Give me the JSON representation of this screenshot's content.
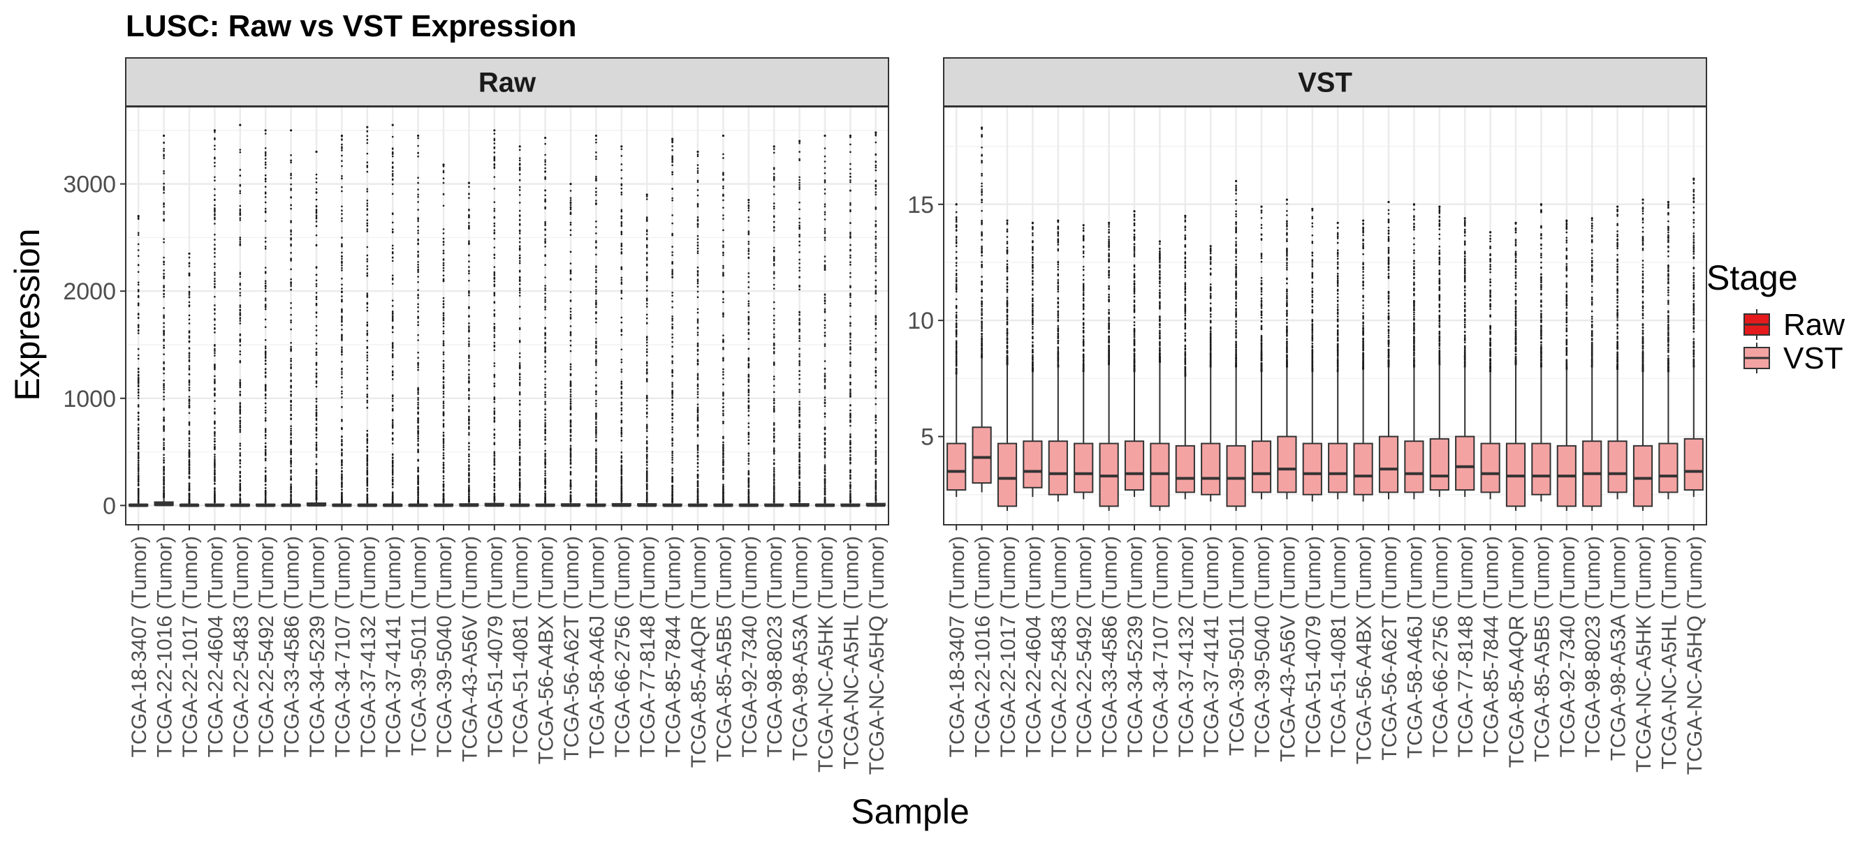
{
  "chart_data": {
    "type": "box",
    "title": "LUSC: Raw vs VST Expression",
    "xlabel": "Sample",
    "ylabel": "Expression",
    "legend": {
      "title": "Stage",
      "position": "right",
      "entries": [
        {
          "name": "Raw",
          "color": "#E41A1C"
        },
        {
          "name": "VST",
          "color": "#F4A3A3"
        }
      ]
    },
    "samples": [
      "TCGA-18-3407 (Tumor)",
      "TCGA-22-1016 (Tumor)",
      "TCGA-22-1017 (Tumor)",
      "TCGA-22-4604 (Tumor)",
      "TCGA-22-5483 (Tumor)",
      "TCGA-22-5492 (Tumor)",
      "TCGA-33-4586 (Tumor)",
      "TCGA-34-5239 (Tumor)",
      "TCGA-34-7107 (Tumor)",
      "TCGA-37-4132 (Tumor)",
      "TCGA-37-4141 (Tumor)",
      "TCGA-39-5011 (Tumor)",
      "TCGA-39-5040 (Tumor)",
      "TCGA-43-A56V (Tumor)",
      "TCGA-51-4079 (Tumor)",
      "TCGA-51-4081 (Tumor)",
      "TCGA-56-A4BX (Tumor)",
      "TCGA-56-A62T (Tumor)",
      "TCGA-58-A46J (Tumor)",
      "TCGA-66-2756 (Tumor)",
      "TCGA-77-8148 (Tumor)",
      "TCGA-85-7844 (Tumor)",
      "TCGA-85-A4QR (Tumor)",
      "TCGA-85-A5B5 (Tumor)",
      "TCGA-92-7340 (Tumor)",
      "TCGA-98-8023 (Tumor)",
      "TCGA-98-A53A (Tumor)",
      "TCGA-NC-A5HK (Tumor)",
      "TCGA-NC-A5HL (Tumor)",
      "TCGA-NC-A5HQ (Tumor)"
    ],
    "panels": [
      {
        "name": "Raw",
        "ylim": [
          -180,
          3720
        ],
        "yticks": [
          0,
          1000,
          2000,
          3000
        ],
        "ytick_labels": [
          "0",
          "1000",
          "2000",
          "3000"
        ],
        "q1": [
          0,
          4,
          0,
          0,
          0,
          0,
          0,
          3,
          0,
          0,
          0,
          0,
          0,
          0,
          1,
          0,
          0,
          0,
          0,
          0,
          0,
          0,
          0,
          0,
          0,
          0,
          0,
          0,
          0,
          1
        ],
        "median": [
          2,
          10,
          2,
          2,
          2,
          2,
          2,
          6,
          2,
          2,
          2,
          2,
          2,
          3,
          4,
          2,
          2,
          3,
          2,
          3,
          3,
          2,
          2,
          2,
          2,
          2,
          3,
          2,
          2,
          4
        ],
        "q3": [
          10,
          32,
          8,
          12,
          10,
          11,
          8,
          22,
          10,
          10,
          9,
          8,
          12,
          14,
          18,
          10,
          11,
          14,
          12,
          16,
          15,
          12,
          10,
          11,
          10,
          12,
          15,
          10,
          12,
          18
        ],
        "whisker_low": [
          0,
          0,
          0,
          0,
          0,
          0,
          0,
          0,
          0,
          0,
          0,
          0,
          0,
          0,
          0,
          0,
          0,
          0,
          0,
          0,
          0,
          0,
          0,
          0,
          0,
          0,
          0,
          0,
          0,
          0
        ],
        "whisker_high": [
          25,
          75,
          20,
          30,
          25,
          27,
          20,
          55,
          25,
          25,
          22,
          20,
          30,
          35,
          45,
          25,
          27,
          35,
          30,
          40,
          37,
          30,
          25,
          27,
          25,
          30,
          37,
          25,
          30,
          45
        ],
        "outlier_max": [
          2700,
          3450,
          2350,
          3500,
          3550,
          3500,
          3500,
          3300,
          3450,
          3530,
          3550,
          3450,
          3180,
          3010,
          3500,
          3350,
          3430,
          3000,
          3450,
          3350,
          2900,
          3420,
          3300,
          3450,
          2850,
          3350,
          3400,
          3450,
          3450,
          3480
        ]
      },
      {
        "name": "VST",
        "ylim": [
          1.2,
          19.2
        ],
        "yticks": [
          5,
          10,
          15
        ],
        "ytick_labels": [
          "5",
          "10",
          "15"
        ],
        "q1": [
          2.7,
          3.0,
          2.0,
          2.8,
          2.5,
          2.6,
          2.0,
          2.7,
          2.0,
          2.6,
          2.5,
          2.0,
          2.6,
          2.6,
          2.5,
          2.6,
          2.5,
          2.6,
          2.6,
          2.7,
          2.7,
          2.6,
          2.0,
          2.5,
          2.0,
          2.0,
          2.6,
          2.0,
          2.6,
          2.7
        ],
        "median": [
          3.5,
          4.1,
          3.2,
          3.5,
          3.4,
          3.4,
          3.3,
          3.4,
          3.4,
          3.2,
          3.2,
          3.2,
          3.4,
          3.6,
          3.4,
          3.4,
          3.3,
          3.6,
          3.4,
          3.3,
          3.7,
          3.4,
          3.3,
          3.3,
          3.3,
          3.4,
          3.4,
          3.2,
          3.3,
          3.5
        ],
        "q3": [
          4.7,
          5.4,
          4.7,
          4.8,
          4.8,
          4.7,
          4.7,
          4.8,
          4.7,
          4.6,
          4.7,
          4.6,
          4.8,
          5.0,
          4.7,
          4.7,
          4.7,
          5.0,
          4.8,
          4.9,
          5.0,
          4.7,
          4.7,
          4.7,
          4.6,
          4.8,
          4.8,
          4.6,
          4.7,
          4.9
        ],
        "whisker_low": [
          2.4,
          2.6,
          1.8,
          2.4,
          2.2,
          2.3,
          1.8,
          2.4,
          1.8,
          2.3,
          2.2,
          1.8,
          2.3,
          2.3,
          2.2,
          2.3,
          2.2,
          2.3,
          2.3,
          2.4,
          2.4,
          2.3,
          1.8,
          2.2,
          1.8,
          1.8,
          2.3,
          1.8,
          2.3,
          2.4
        ],
        "whisker_high": [
          7.7,
          8.4,
          8.1,
          7.8,
          8.0,
          7.8,
          8.1,
          7.8,
          8.2,
          7.6,
          8.0,
          8.0,
          7.8,
          8.0,
          7.8,
          7.8,
          7.9,
          8.0,
          8.0,
          8.1,
          8.0,
          7.8,
          8.1,
          8.0,
          7.9,
          8.0,
          7.9,
          7.8,
          7.8,
          8.0
        ],
        "outlier_max": [
          15.0,
          18.3,
          14.3,
          14.2,
          14.3,
          14.1,
          14.2,
          14.7,
          13.4,
          14.5,
          13.2,
          16.0,
          14.9,
          15.2,
          14.8,
          14.2,
          14.3,
          15.1,
          15.0,
          14.9,
          14.4,
          13.8,
          14.2,
          15.0,
          14.3,
          14.4,
          14.9,
          15.2,
          15.1,
          16.1
        ]
      }
    ]
  }
}
